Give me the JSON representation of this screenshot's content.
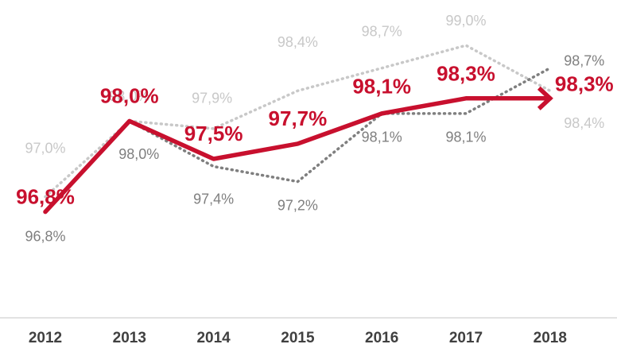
{
  "chart_data": {
    "type": "line",
    "categories": [
      "2012",
      "2013",
      "2014",
      "2015",
      "2016",
      "2017",
      "2018"
    ],
    "ylim": [
      95.4,
      99.6
    ],
    "series": [
      {
        "color": "#c8c8c8",
        "dash": true,
        "values": [
          97.0,
          98.0,
          97.9,
          98.4,
          98.7,
          99.0,
          98.4
        ],
        "value_labels": [
          "97,0%",
          "98,0%",
          "97,9%",
          "98,4%",
          "98,7%",
          "99,0%",
          "98,4%"
        ]
      },
      {
        "color": "#7f7f7f",
        "dash": true,
        "values": [
          96.8,
          98.0,
          97.4,
          97.2,
          98.1,
          98.1,
          98.7
        ],
        "value_labels": [
          "96,8%",
          "98,0%",
          "97,4%",
          "97,2%",
          "98,1%",
          "98,1%",
          "98,7%"
        ]
      },
      {
        "color": "#c8102e",
        "dash": false,
        "values": [
          96.8,
          98.0,
          97.5,
          97.7,
          98.1,
          98.3,
          98.3
        ],
        "value_labels": [
          "96,8%",
          "98,0%",
          "97,5%",
          "97,7%",
          "98,1%",
          "98,3%",
          "98,3%"
        ]
      }
    ]
  }
}
